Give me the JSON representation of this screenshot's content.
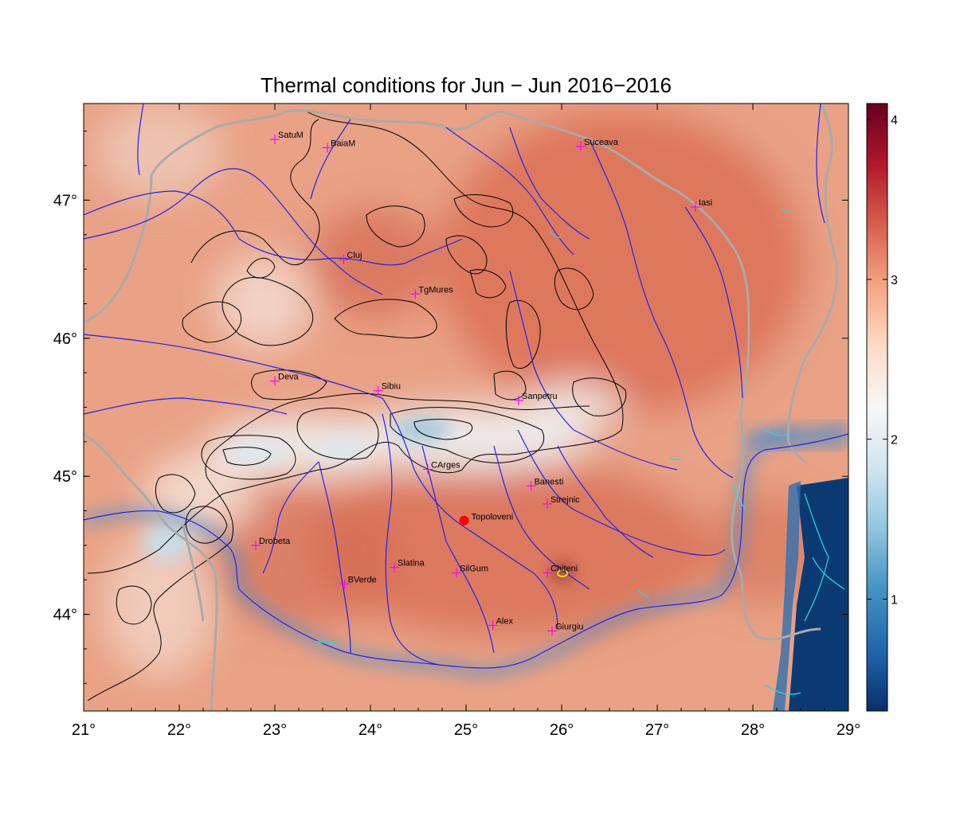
{
  "title": "Thermal conditions for Jun − Jun  2016−2016",
  "x_ticks": [
    {
      "value": 21,
      "label": "21°"
    },
    {
      "value": 22,
      "label": "22°"
    },
    {
      "value": 23,
      "label": "23°"
    },
    {
      "value": 24,
      "label": "24°"
    },
    {
      "value": 25,
      "label": "25°"
    },
    {
      "value": 26,
      "label": "26°"
    },
    {
      "value": 27,
      "label": "27°"
    },
    {
      "value": 28,
      "label": "28°"
    },
    {
      "value": 29,
      "label": "29°"
    }
  ],
  "y_ticks": [
    {
      "value": 44,
      "label": "44°"
    },
    {
      "value": 45,
      "label": "45°"
    },
    {
      "value": 46,
      "label": "46°"
    },
    {
      "value": 47,
      "label": "47°"
    }
  ],
  "extent": {
    "lon": [
      21,
      29
    ],
    "lat": [
      43.3,
      47.7
    ]
  },
  "colorbar": {
    "range": [
      0.3,
      4.1
    ],
    "ticks": [
      {
        "value": 1,
        "label": "1"
      },
      {
        "value": 2,
        "label": "2"
      },
      {
        "value": 3,
        "label": "3"
      },
      {
        "value": 4,
        "label": "4"
      }
    ],
    "colors": [
      "#08306b",
      "#2166ac",
      "#4393c3",
      "#92c5de",
      "#d1e5f0",
      "#f7f7f7",
      "#fddbc7",
      "#f4a582",
      "#d6604d",
      "#b2182b",
      "#67001f"
    ]
  },
  "cities": [
    {
      "name": "SatuM",
      "lon": 23.0,
      "lat": 47.44
    },
    {
      "name": "BaiaM",
      "lon": 23.55,
      "lat": 47.38
    },
    {
      "name": "Suceava",
      "lon": 26.2,
      "lat": 47.39
    },
    {
      "name": "Iasi",
      "lon": 27.4,
      "lat": 46.95
    },
    {
      "name": "Cluj",
      "lon": 23.72,
      "lat": 46.57
    },
    {
      "name": "TgMures",
      "lon": 24.47,
      "lat": 46.32
    },
    {
      "name": "Deva",
      "lon": 23.0,
      "lat": 45.69
    },
    {
      "name": "Sibiu",
      "lon": 24.08,
      "lat": 45.62
    },
    {
      "name": "Sanpetru",
      "lon": 25.55,
      "lat": 45.55
    },
    {
      "name": "CArges",
      "lon": 24.6,
      "lat": 45.05
    },
    {
      "name": "Banesti",
      "lon": 25.68,
      "lat": 44.93
    },
    {
      "name": "Strejnic",
      "lon": 25.85,
      "lat": 44.8
    },
    {
      "name": "Drobeta",
      "lon": 22.8,
      "lat": 44.5
    },
    {
      "name": "Slatina",
      "lon": 24.25,
      "lat": 44.34
    },
    {
      "name": "SilGum",
      "lon": 24.9,
      "lat": 44.3
    },
    {
      "name": "Chiteni",
      "lon": 25.85,
      "lat": 44.3
    },
    {
      "name": "BVerde",
      "lon": 23.73,
      "lat": 44.22
    },
    {
      "name": "Alex",
      "lon": 25.28,
      "lat": 43.92
    },
    {
      "name": "Giurgiu",
      "lon": 25.9,
      "lat": 43.88
    }
  ],
  "highlight": {
    "name": "Topoloveni",
    "lon": 24.98,
    "lat": 44.68
  }
}
